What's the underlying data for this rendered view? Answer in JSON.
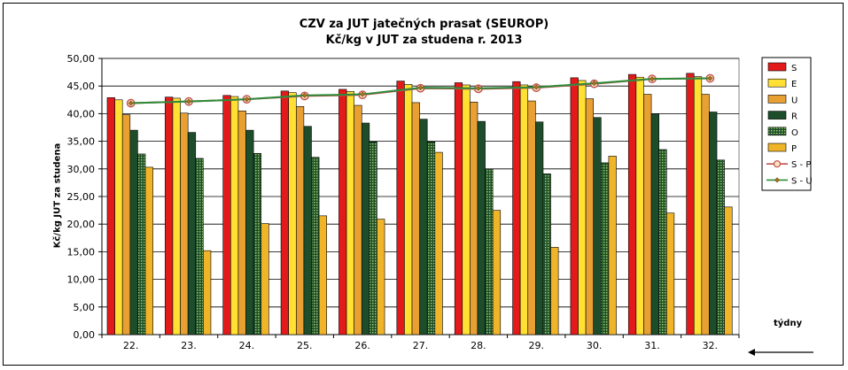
{
  "chart_data": {
    "type": "bar",
    "title": "CZV za JUT jatečných prasat (SEUROP)",
    "subtitle": "Kč/kg v JUT za studena r. 2013",
    "ylabel": "Kč/kg  JUT za studena",
    "xlabel": "týdny",
    "ylim": [
      0,
      50
    ],
    "ytick_step": 5,
    "yticks": [
      "0,00",
      "5,00",
      "10,00",
      "15,00",
      "20,00",
      "25,00",
      "30,00",
      "35,00",
      "40,00",
      "45,00",
      "50,00"
    ],
    "grid": true,
    "legend_position": "right",
    "categories": [
      "22.",
      "23.",
      "24.",
      "25.",
      "26.",
      "27.",
      "28.",
      "29.",
      "30.",
      "31.",
      "32."
    ],
    "series": [
      {
        "name": "S",
        "kind": "bar",
        "color": "#e31a1c",
        "values": [
          42.9,
          43.0,
          43.3,
          44.1,
          44.4,
          45.9,
          45.6,
          45.8,
          46.5,
          47.1,
          47.3
        ]
      },
      {
        "name": "E",
        "kind": "bar",
        "color": "#ffe033",
        "values": [
          42.5,
          42.8,
          43.1,
          43.8,
          44.0,
          45.3,
          45.2,
          45.2,
          46.0,
          46.6,
          46.7
        ]
      },
      {
        "name": "U",
        "kind": "bar",
        "color": "#e8a033",
        "values": [
          39.8,
          40.1,
          40.5,
          41.3,
          41.5,
          42.0,
          42.1,
          42.3,
          42.7,
          43.5,
          43.5
        ]
      },
      {
        "name": "R",
        "kind": "bar",
        "color": "#1e4d2b",
        "values": [
          37.0,
          36.6,
          37.0,
          37.7,
          38.3,
          39.0,
          38.6,
          38.5,
          39.3,
          40.0,
          40.3
        ]
      },
      {
        "name": "O",
        "kind": "bar",
        "color": "#4a7a32",
        "pattern": true,
        "values": [
          32.7,
          31.9,
          32.8,
          32.1,
          34.9,
          34.9,
          30.0,
          29.1,
          31.1,
          33.5,
          31.6
        ]
      },
      {
        "name": "P",
        "kind": "bar",
        "color": "#f0b429",
        "values": [
          30.3,
          15.2,
          20.1,
          21.5,
          20.9,
          33.0,
          22.5,
          15.8,
          32.3,
          22.0,
          23.1
        ]
      },
      {
        "name": "S - P",
        "kind": "line",
        "color": "#c0504d",
        "marker_fill": "#fce4c0",
        "values": [
          41.9,
          42.2,
          42.6,
          43.2,
          43.4,
          44.6,
          44.5,
          44.7,
          45.4,
          46.3,
          46.4
        ]
      },
      {
        "name": "S - U",
        "kind": "line",
        "color": "#2e8b3a",
        "marker_fill": "#b07020",
        "values": [
          41.9,
          42.2,
          42.6,
          43.3,
          43.5,
          44.7,
          44.6,
          44.8,
          45.5,
          46.3,
          46.4
        ]
      }
    ]
  }
}
